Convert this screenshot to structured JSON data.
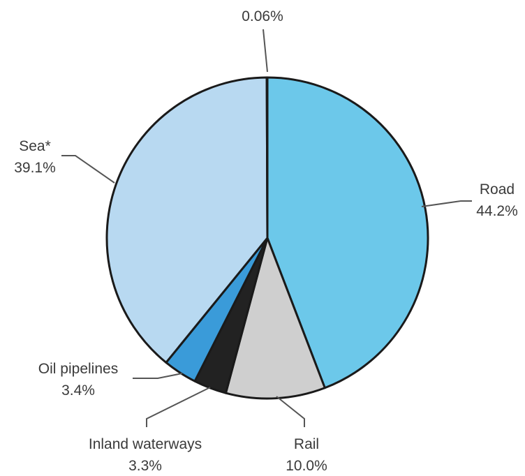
{
  "chart_data": {
    "type": "pie",
    "start": "top",
    "direction": "clockwise",
    "slices": [
      {
        "name": "Road",
        "value": 44.2,
        "label": "44.2%",
        "color": "#6cc8ea"
      },
      {
        "name": "Rail",
        "value": 10.0,
        "label": "10.0%",
        "color": "#cfcfcf"
      },
      {
        "name": "Inland waterways",
        "value": 3.3,
        "label": "3.3%",
        "color": "#222222"
      },
      {
        "name": "Oil pipelines",
        "value": 3.4,
        "label": "3.4%",
        "color": "#3a9bd9"
      },
      {
        "name": "Sea*",
        "value": 39.1,
        "label": "39.1%",
        "color": "#b8d9f1"
      },
      {
        "name": "",
        "value": 0.06,
        "label": "0.06%",
        "color": "#eeeeee"
      }
    ]
  }
}
